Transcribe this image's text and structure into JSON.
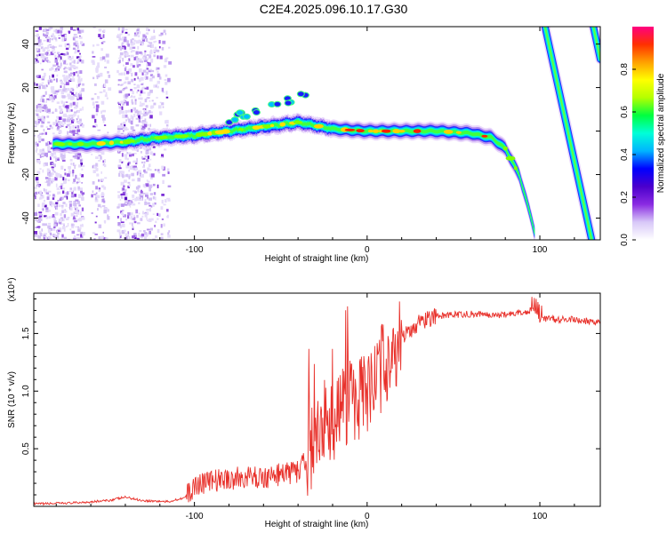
{
  "title": "C2E4.2025.096.10.17.G30",
  "colors": {
    "snr_line": "#e8302a",
    "colorbar": [
      "#ffffff",
      "#d8c8f8",
      "#8a2be2",
      "#4b00cc",
      "#0000ff",
      "#00b4ff",
      "#00ffd8",
      "#00ff40",
      "#b4ff00",
      "#ffff00",
      "#ffa000",
      "#ff3000",
      "#ff0080"
    ]
  },
  "chart_data": [
    {
      "type": "heatmap",
      "xlabel": "Height of straight line (km)",
      "ylabel": "Frequency (Hz)",
      "xlim": [
        -193,
        135
      ],
      "ylim": [
        -50,
        48
      ],
      "x_ticks": [
        -100,
        0,
        100
      ],
      "x_tick_labels": [
        "-100",
        "0",
        "100"
      ],
      "y_ticks": [
        -40,
        -20,
        0,
        20,
        40
      ],
      "y_tick_labels": [
        "-40",
        "-20",
        "0",
        "20",
        "40"
      ],
      "colorbar": {
        "label": "Normalized spectral amplitude",
        "ticks": [
          0.0,
          0.2,
          0.4,
          0.6,
          0.8
        ],
        "tick_labels": [
          "0.0",
          "0.2",
          "0.4",
          "0.6",
          "0.8"
        ],
        "range": [
          0,
          1
        ]
      },
      "doppler_trace": [
        {
          "x": -182,
          "f": -6
        },
        {
          "x": -160,
          "f": -6
        },
        {
          "x": -140,
          "f": -5
        },
        {
          "x": -120,
          "f": -3
        },
        {
          "x": -100,
          "f": -2
        },
        {
          "x": -80,
          "f": 0
        },
        {
          "x": -60,
          "f": 2
        },
        {
          "x": -40,
          "f": 4
        },
        {
          "x": -20,
          "f": 1
        },
        {
          "x": 0,
          "f": 0
        },
        {
          "x": 20,
          "f": 0
        },
        {
          "x": 40,
          "f": 0
        },
        {
          "x": 60,
          "f": -1
        },
        {
          "x": 72,
          "f": -3
        },
        {
          "x": 80,
          "f": -8
        },
        {
          "x": 88,
          "f": -20
        },
        {
          "x": 95,
          "f": -40
        },
        {
          "x": 98,
          "f": -50
        }
      ],
      "branch_2": [
        {
          "x": 103,
          "f": 48
        },
        {
          "x": 130,
          "f": -50
        }
      ],
      "branch_3": [
        {
          "x": 131,
          "f": 48
        },
        {
          "x": 135,
          "f": 33
        }
      ]
    },
    {
      "type": "line",
      "xlabel": "Height of straight line (km)",
      "ylabel": "SNR (10 * v/v)",
      "scale_label": "(x10⁴)",
      "xlim": [
        -193,
        135
      ],
      "ylim": [
        0,
        1.85
      ],
      "x_ticks": [
        -100,
        0,
        100
      ],
      "x_tick_labels": [
        "-100",
        "0",
        "100"
      ],
      "y_ticks": [
        0.5,
        1.0,
        1.5
      ],
      "y_tick_labels": [
        "0.5",
        "1.0",
        "1.5"
      ],
      "series": [
        {
          "x": [
            -193,
            -170,
            -150,
            -140,
            -130,
            -115,
            -105,
            -98,
            -90,
            -80,
            -70,
            -60,
            -50,
            -40,
            -33,
            -28,
            -25,
            -22,
            -18,
            -15,
            -12,
            -8,
            -4,
            0,
            5,
            10,
            15,
            20,
            30,
            40,
            60,
            80,
            95,
            98,
            100,
            105,
            110,
            120,
            135
          ],
          "y": [
            0.02,
            0.03,
            0.05,
            0.08,
            0.05,
            0.04,
            0.08,
            0.2,
            0.22,
            0.24,
            0.25,
            0.25,
            0.28,
            0.3,
            0.45,
            0.7,
            0.8,
            0.75,
            0.7,
            0.85,
            0.9,
            0.95,
            0.9,
            1.0,
            1.1,
            1.25,
            1.35,
            1.45,
            1.6,
            1.65,
            1.67,
            1.66,
            1.7,
            1.68,
            1.62,
            1.63,
            1.62,
            1.62,
            1.6
          ]
        }
      ]
    }
  ]
}
